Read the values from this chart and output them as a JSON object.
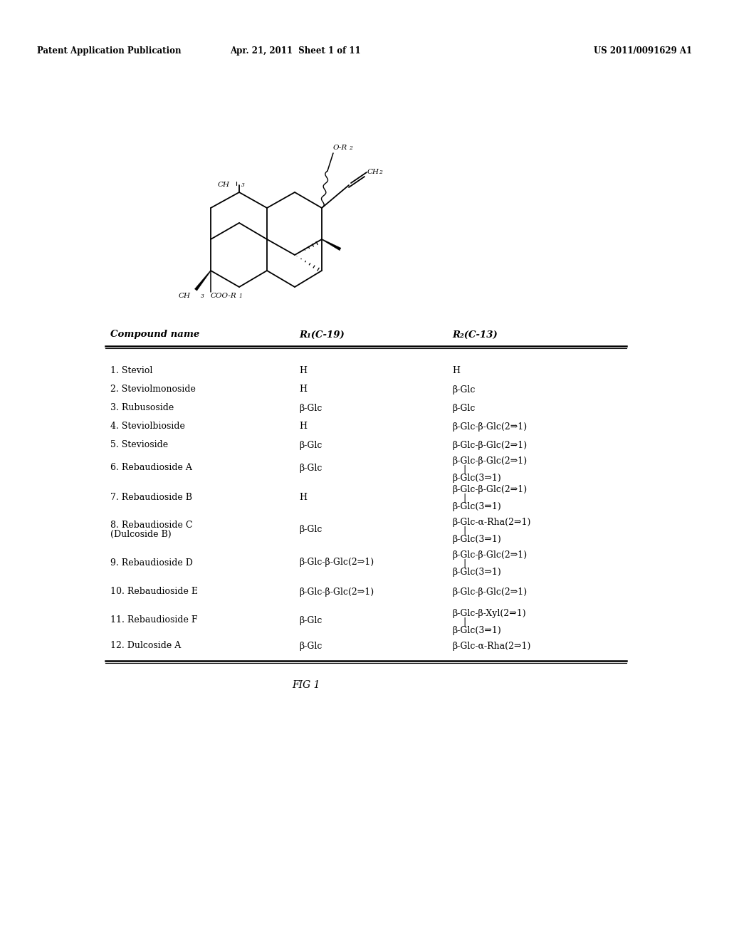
{
  "header_left": "Patent Application Publication",
  "header_center": "Apr. 21, 2011  Sheet 1 of 11",
  "header_right": "US 2011/0091629 A1",
  "fig_label": "FIG 1",
  "table_header_name": "Compound name",
  "table_header_r1": "R₁(C-19)",
  "table_header_r2": "R₂(C-13)",
  "rows": [
    {
      "name": "1. Steviol",
      "r1": "H",
      "r2": [
        "H"
      ]
    },
    {
      "name": "2. Steviolmonoside",
      "r1": "H",
      "r2": [
        "β-Glc"
      ]
    },
    {
      "name": "3. Rubusoside",
      "r1": "β-Glc",
      "r2": [
        "β-Glc"
      ]
    },
    {
      "name": "4. Steviolbioside",
      "r1": "H",
      "r2": [
        "β-Glc-β-Glc(2⇒1)"
      ]
    },
    {
      "name": "5. Stevioside",
      "r1": "β-Glc",
      "r2": [
        "β-Glc-β-Glc(2⇒1)"
      ]
    },
    {
      "name": "6. Rebaudioside A",
      "r1": "β-Glc",
      "r2": [
        "β-Glc-β-Glc(2⇒1)",
        "|",
        "β-Glc(3⇒1)"
      ]
    },
    {
      "name": "7. Rebaudioside B",
      "r1": "H",
      "r2": [
        "β-Glc-β-Glc(2⇒1)",
        "|",
        "β-Glc(3⇒1)"
      ]
    },
    {
      "name": "8. Rebaudioside C\n(Dulcoside B)",
      "r1": "β-Glc",
      "r2": [
        "β-Glc-α-Rha(2⇒1)",
        "|",
        "β-Glc(3⇒1)"
      ]
    },
    {
      "name": "9. Rebaudioside D",
      "r1": "β-Glc-β-Glc(2⇒1)",
      "r2": [
        "β-Glc-β-Glc(2⇒1)",
        "|",
        "β-Glc(3⇒1)"
      ]
    },
    {
      "name": "10. Rebaudioside E",
      "r1": "β-Glc-β-Glc(2⇒1)",
      "r2": [
        "β-Glc-β-Glc(2⇒1)"
      ]
    },
    {
      "name": "11. Rebaudioside F",
      "r1": "β-Glc",
      "r2": [
        "β-Glc-β-Xyl(2⇒1)",
        "|",
        "β-Glc(3⇒1)"
      ]
    },
    {
      "name": "12. Dulcoside A",
      "r1": "β-Glc",
      "r2": [
        "β-Glc-α-Rha(2⇒1)"
      ]
    }
  ],
  "background_color": "#ffffff",
  "text_color": "#000000"
}
